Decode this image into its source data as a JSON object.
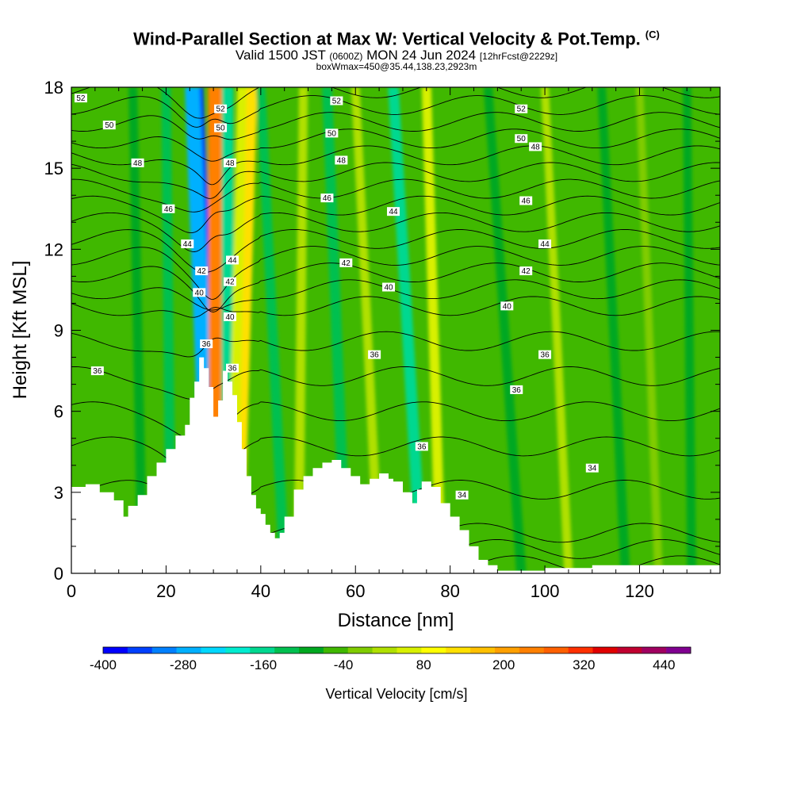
{
  "header": {
    "title": "Wind-Parallel Section at Max W: Vertical Velocity & Pot.Temp.",
    "title_mark": "(C)",
    "valid_prefix": "Valid 1500 JST",
    "valid_z": "(0600Z)",
    "valid_date": "MON 24 Jun 2024",
    "forecast": "[12hrFcst@2229z]",
    "boxline": "boxWmax=450@35.44,138.23,2923m"
  },
  "chart_data": {
    "type": "heatmap",
    "xlabel": "Distance [nm]",
    "ylabel": "Height [Kft MSL]",
    "xlim": [
      0,
      137
    ],
    "ylim": [
      0,
      18
    ],
    "x_ticks": [
      "0",
      "20",
      "40",
      "60",
      "80",
      "100",
      "120"
    ],
    "y_ticks": [
      "0",
      "3",
      "6",
      "9",
      "12",
      "15",
      "18"
    ],
    "colorbar": {
      "label": "Vertical Velocity [cm/s]",
      "tick_labels": [
        "-400",
        "-280",
        "-160",
        "-40",
        "80",
        "200",
        "320",
        "440"
      ],
      "tick_values": [
        -400,
        -280,
        -160,
        -40,
        80,
        200,
        320,
        440
      ],
      "min": -400,
      "max": 480,
      "step": 40,
      "colors": [
        "#0000ff",
        "#0040ff",
        "#0080ff",
        "#00b0ff",
        "#00d8ff",
        "#00ecd0",
        "#00d890",
        "#00c050",
        "#00a820",
        "#40b800",
        "#80cc00",
        "#b0e000",
        "#d8f000",
        "#ffff00",
        "#ffe000",
        "#ffc000",
        "#ffa000",
        "#ff8000",
        "#ff6000",
        "#ff3000",
        "#e00000",
        "#c00030",
        "#a00060",
        "#800090"
      ]
    },
    "terrain_profile": {
      "x": [
        0,
        3,
        6,
        9,
        11,
        12,
        14,
        16,
        18,
        20,
        22,
        24,
        25,
        26,
        27,
        28,
        29,
        30,
        31,
        32,
        33,
        34,
        35,
        36,
        37,
        38,
        39,
        40,
        41,
        42,
        43,
        44,
        45,
        47,
        49,
        51,
        53,
        55,
        57,
        59,
        61,
        63,
        65,
        67,
        68,
        70,
        72,
        73,
        74,
        76,
        78,
        80,
        82,
        84,
        86,
        88,
        90,
        95,
        100,
        110,
        120,
        130,
        137
      ],
      "height_kft": [
        3.2,
        3.3,
        3.0,
        2.7,
        2.1,
        2.5,
        2.9,
        3.6,
        4.1,
        4.6,
        5.1,
        5.5,
        6.5,
        7.1,
        8.0,
        7.6,
        6.9,
        5.8,
        6.4,
        7.5,
        7.1,
        6.6,
        5.6,
        4.6,
        3.6,
        2.9,
        2.4,
        2.2,
        1.8,
        1.5,
        1.3,
        1.5,
        2.1,
        3.1,
        3.6,
        3.9,
        4.1,
        4.2,
        3.9,
        3.6,
        3.3,
        3.5,
        3.7,
        3.5,
        3.4,
        3.0,
        2.6,
        3.1,
        3.4,
        3.2,
        2.6,
        2.1,
        1.6,
        1.0,
        0.5,
        0.3,
        0.1,
        0.1,
        0.2,
        0.3,
        0.3,
        0.3,
        0.3
      ]
    },
    "vertical_velocity_features": [
      {
        "x_base": 30,
        "x_top": 26,
        "value": -360
      },
      {
        "x_base": 29.5,
        "x_top": 25.5,
        "value": -260
      },
      {
        "x_base": 31.5,
        "x_top": 31,
        "value": 400
      },
      {
        "x_base": 31,
        "x_top": 30.5,
        "value": 300
      },
      {
        "x_base": 33,
        "x_top": 33,
        "value": -160
      },
      {
        "x_base": 35,
        "x_top": 38,
        "value": 170
      },
      {
        "x_base": 34,
        "x_top": 36,
        "value": 90
      },
      {
        "x_base": 45,
        "x_top": 40,
        "value": -90
      },
      {
        "x_base": 48,
        "x_top": 49,
        "value": 70
      },
      {
        "x_base": 58,
        "x_top": 54,
        "value": -110
      },
      {
        "x_base": 65,
        "x_top": 60,
        "value": 60
      },
      {
        "x_base": 74,
        "x_top": 68,
        "value": -130
      },
      {
        "x_base": 78,
        "x_top": 75,
        "value": 90
      },
      {
        "x_base": 95,
        "x_top": 88,
        "value": -70
      },
      {
        "x_base": 105,
        "x_top": 100,
        "value": 40
      },
      {
        "x_base": 117,
        "x_top": 112,
        "value": -60
      },
      {
        "x_base": 124,
        "x_top": 120,
        "value": 30
      },
      {
        "x_base": 131,
        "x_top": 130,
        "value": -50
      },
      {
        "x_base": 15,
        "x_top": 13,
        "value": -70
      },
      {
        "x_base": 21,
        "x_top": 20,
        "value": -90
      }
    ],
    "theta_contours": [
      {
        "value": 34,
        "labels": [
          {
            "x": 82.5,
            "y": 2.9
          },
          {
            "x": 110,
            "y": 3.9
          }
        ]
      },
      {
        "value": 36,
        "labels": [
          {
            "x": 5.5,
            "y": 7.5
          },
          {
            "x": 28.5,
            "y": 8.5
          },
          {
            "x": 34,
            "y": 7.6
          },
          {
            "x": 64,
            "y": 8.1
          },
          {
            "x": 94,
            "y": 6.8
          },
          {
            "x": 100,
            "y": 8.1
          },
          {
            "x": 74,
            "y": 4.7
          }
        ]
      },
      {
        "value": 40,
        "labels": [
          {
            "x": 27,
            "y": 10.4
          },
          {
            "x": 33.5,
            "y": 9.5
          },
          {
            "x": 67,
            "y": 10.6
          },
          {
            "x": 92,
            "y": 9.9
          }
        ]
      },
      {
        "value": 42,
        "labels": [
          {
            "x": 27.5,
            "y": 11.2
          },
          {
            "x": 33.5,
            "y": 10.8
          },
          {
            "x": 58,
            "y": 11.5
          },
          {
            "x": 96,
            "y": 11.2
          }
        ]
      },
      {
        "value": 44,
        "labels": [
          {
            "x": 24.5,
            "y": 12.2
          },
          {
            "x": 34,
            "y": 11.6
          },
          {
            "x": 68,
            "y": 13.4
          },
          {
            "x": 100,
            "y": 12.2
          }
        ]
      },
      {
        "value": 46,
        "labels": [
          {
            "x": 20.5,
            "y": 13.5
          },
          {
            "x": 54,
            "y": 13.9
          },
          {
            "x": 96,
            "y": 13.8
          }
        ]
      },
      {
        "value": 48,
        "labels": [
          {
            "x": 14,
            "y": 15.2
          },
          {
            "x": 33.5,
            "y": 15.2
          },
          {
            "x": 57,
            "y": 15.3
          },
          {
            "x": 98,
            "y": 15.8
          }
        ]
      },
      {
        "value": 50,
        "labels": [
          {
            "x": 8,
            "y": 16.6
          },
          {
            "x": 31.5,
            "y": 16.5
          },
          {
            "x": 55,
            "y": 16.3
          },
          {
            "x": 95,
            "y": 16.1
          }
        ]
      },
      {
        "value": 52,
        "labels": [
          {
            "x": 2,
            "y": 17.6
          },
          {
            "x": 31.5,
            "y": 17.2
          },
          {
            "x": 56,
            "y": 17.5
          },
          {
            "x": 95,
            "y": 17.2
          }
        ]
      }
    ]
  }
}
